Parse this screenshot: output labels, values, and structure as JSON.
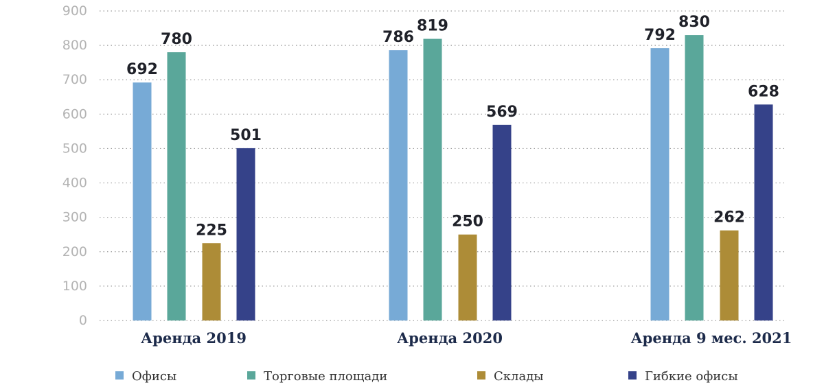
{
  "chart_data": {
    "type": "bar",
    "categories": [
      "Аренда 2019",
      "Аренда 2020",
      "Аренда 9 мес. 2021"
    ],
    "series": [
      {
        "name": "Офисы",
        "color": "#77aad6",
        "values": [
          692,
          786,
          792
        ]
      },
      {
        "name": "Торговые площади",
        "color": "#5aa79a",
        "values": [
          780,
          819,
          830
        ]
      },
      {
        "name": "Склады",
        "color": "#ad8c37",
        "values": [
          225,
          250,
          262
        ]
      },
      {
        "name": "Гибкие офисы",
        "color": "#354289",
        "values": [
          501,
          569,
          628
        ]
      }
    ],
    "value_labels": [
      [
        "692",
        "786",
        "792"
      ],
      [
        "780",
        "819",
        "830"
      ],
      [
        "225",
        "250",
        "262"
      ],
      [
        "501",
        "569",
        "628"
      ]
    ],
    "ylim": [
      0,
      900
    ],
    "yticks": [
      "0",
      "100",
      "200",
      "300",
      "400",
      "500",
      "600",
      "700",
      "800",
      "900"
    ],
    "grid": true,
    "legend_position": "bottom",
    "title": "",
    "xlabel": "",
    "ylabel": ""
  }
}
